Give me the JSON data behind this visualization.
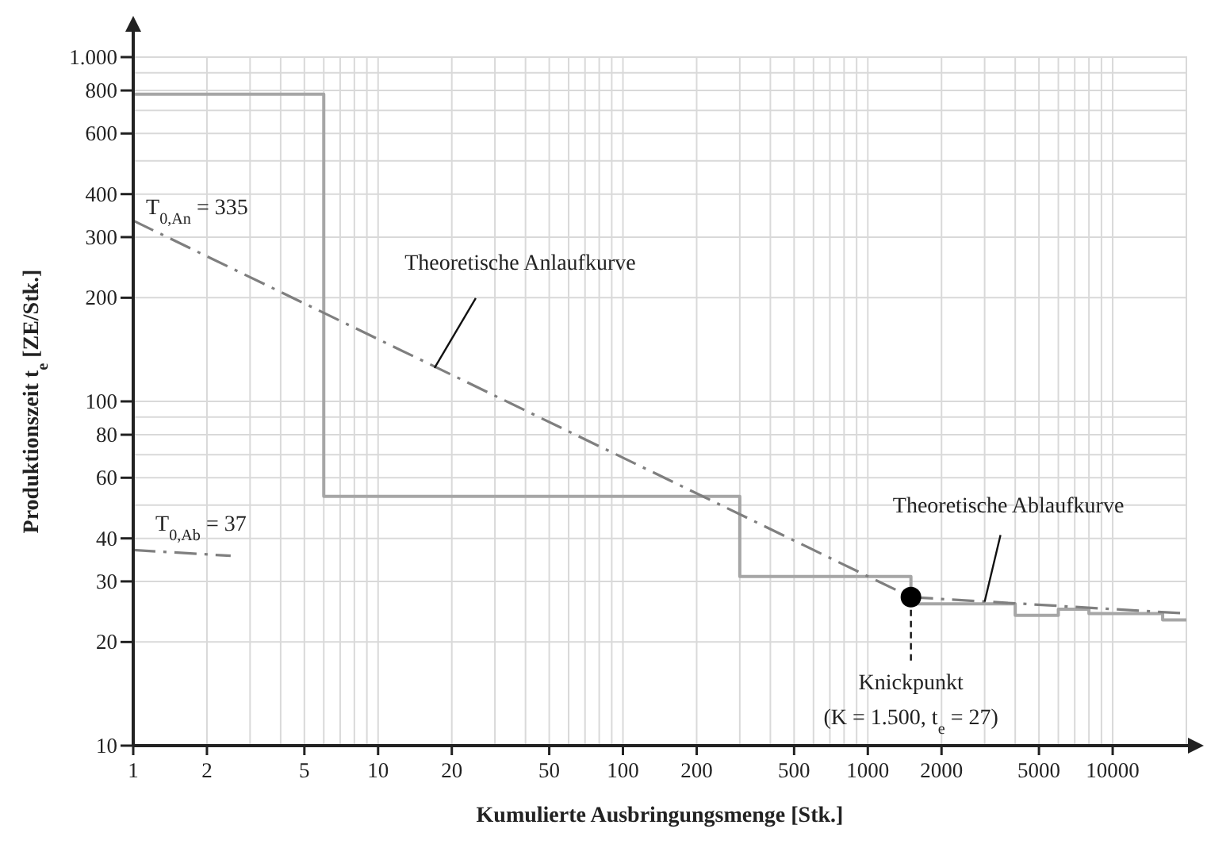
{
  "chart_data": {
    "type": "step",
    "xlabel": "Kumulierte Ausbringungsmenge [Stk.]",
    "ylabel": "Produktionszeit t$_{e}$ [ZE/Stk.]",
    "log": "xy",
    "grid": true,
    "xlim": [
      1,
      20000
    ],
    "ylim": [
      10,
      1000
    ],
    "xticks": [
      1,
      2,
      5,
      10,
      20,
      50,
      100,
      200,
      500,
      1000,
      2000,
      5000,
      10000
    ],
    "yticks": [
      10,
      20,
      30,
      40,
      60,
      80,
      100,
      200,
      300,
      400,
      600,
      800,
      {
        "value": 1000,
        "label": "1.000"
      }
    ],
    "series": [
      {
        "color": "#a6a6a6",
        "x": [
          1,
          6,
          300,
          1500,
          4000,
          6000,
          8000,
          16000,
          20000
        ],
        "values": [
          780,
          53,
          31,
          25.8,
          23.9,
          24.9,
          24.2,
          23.2,
          23.2
        ]
      },
      {
        "type": "line",
        "color": "#7f7f7f",
        "line_style": "dashed",
        "x": [
          1,
          1500
        ],
        "values": [
          335,
          27
        ]
      },
      {
        "type": "line",
        "color": "#7f7f7f",
        "line_style": "dashed",
        "x": [
          1,
          2.5,
          1000,
          1500,
          20000
        ],
        "values": [
          37,
          35.6,
          null,
          27,
          24.2
        ]
      },
      {
        "type": "scatter",
        "color": "#000000",
        "marker": "circle",
        "x": [
          1500
        ],
        "values": [
          27
        ]
      }
    ],
    "annotations": [
      {
        "text": "T$_{0,An}$ = 335",
        "x": 1,
        "y": 335
      },
      {
        "text": "T$_{0,Ab}$ = 37",
        "x": 1,
        "y": 37
      },
      {
        "text": "Theoretische Anlaufkurve",
        "x": 17,
        "y": 125
      },
      {
        "text": "Theoretische Ablaufkurve",
        "x": 3000,
        "y": 26.2
      },
      {
        "text": "Knickpunkt (K = 1.500, t$_{e}$ = 27)",
        "x": 1500,
        "y": 27
      }
    ]
  }
}
